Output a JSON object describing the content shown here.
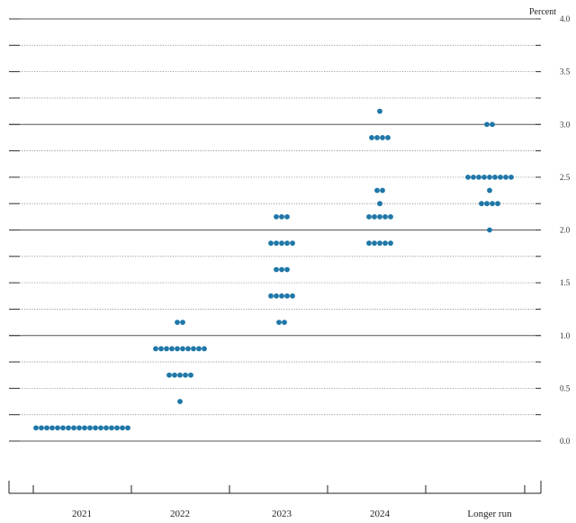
{
  "chart_data": {
    "type": "scatter",
    "ylabel": "Percent",
    "ylim": [
      0,
      4
    ],
    "y_ticks": [
      "0.0",
      "0.5",
      "1.0",
      "1.5",
      "2.0",
      "2.5",
      "3.0",
      "3.5",
      "4.0"
    ],
    "categories": [
      "2021",
      "2022",
      "2023",
      "2024",
      "Longer run"
    ],
    "grid": true,
    "grid_minor_step": 0.25,
    "dot_color": "#1f77a8",
    "columns": [
      {
        "category": "2021",
        "points": [
          {
            "y": 0.125,
            "count": 18
          }
        ]
      },
      {
        "category": "2022",
        "points": [
          {
            "y": 1.125,
            "count": 2
          },
          {
            "y": 0.875,
            "count": 10
          },
          {
            "y": 0.625,
            "count": 5
          },
          {
            "y": 0.375,
            "count": 1
          }
        ]
      },
      {
        "category": "2023",
        "points": [
          {
            "y": 2.125,
            "count": 3
          },
          {
            "y": 1.875,
            "count": 5
          },
          {
            "y": 1.625,
            "count": 3
          },
          {
            "y": 1.375,
            "count": 5
          },
          {
            "y": 1.125,
            "count": 2
          }
        ]
      },
      {
        "category": "2024",
        "points": [
          {
            "y": 3.125,
            "count": 1
          },
          {
            "y": 2.875,
            "count": 4
          },
          {
            "y": 2.375,
            "count": 2
          },
          {
            "y": 2.25,
            "count": 1
          },
          {
            "y": 2.125,
            "count": 5
          },
          {
            "y": 1.875,
            "count": 5
          }
        ]
      },
      {
        "category": "Longer run",
        "points": [
          {
            "y": 3.0,
            "count": 2
          },
          {
            "y": 2.5,
            "count": 9
          },
          {
            "y": 2.375,
            "count": 1
          },
          {
            "y": 2.25,
            "count": 4
          },
          {
            "y": 2.0,
            "count": 1
          }
        ]
      }
    ]
  }
}
